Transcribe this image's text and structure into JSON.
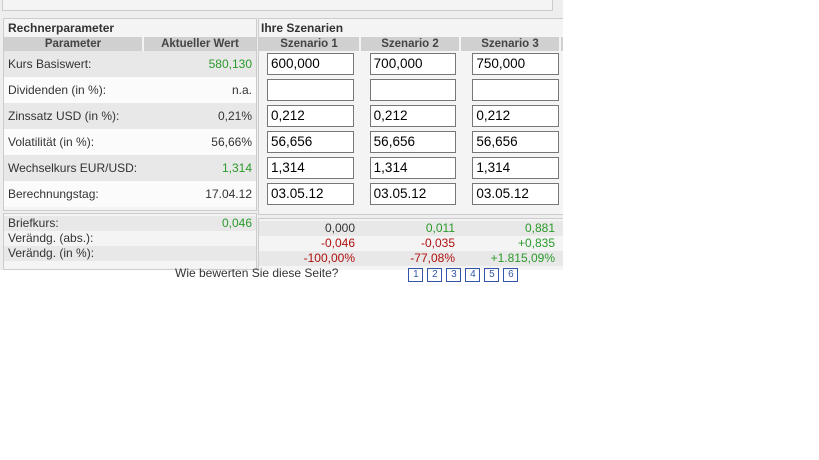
{
  "left": {
    "title": "Rechnerparameter",
    "headers": [
      "Parameter",
      "Aktueller Wert"
    ],
    "rows": [
      {
        "label": "Kurs Basiswert:",
        "value": "580,130"
      },
      {
        "label": "Dividenden (in %):",
        "value": "n.a."
      },
      {
        "label": "Zinssatz USD (in %):",
        "value": "0,21%"
      },
      {
        "label": "Volatilität (in %):",
        "value": "56,66%"
      },
      {
        "label": "Wechselkurs EUR/USD:",
        "value": "1,314"
      },
      {
        "label": "Berechnungstag:",
        "value": "17.04.12"
      }
    ]
  },
  "right": {
    "title": "Ihre Szenarien",
    "headers": [
      "Szenario 1",
      "Szenario 2",
      "Szenario 3"
    ],
    "inputs": [
      [
        "600,000",
        "700,000",
        "750,000"
      ],
      [
        "",
        "",
        ""
      ],
      [
        "0,212",
        "0,212",
        "0,212"
      ],
      [
        "56,656",
        "56,656",
        "56,656"
      ],
      [
        "1,314",
        "1,314",
        "1,314"
      ],
      [
        "03.05.12",
        "03.05.12",
        "03.05.12"
      ]
    ]
  },
  "results": {
    "labels": [
      "Briefkurs:",
      "Verändg. (abs.):",
      "Verändg. (in %):"
    ],
    "current_briefkurs": "0,046",
    "values": [
      [
        "0,000",
        "0,011",
        "0,881"
      ],
      [
        "-0,046",
        "-0,035",
        "+0,835"
      ],
      [
        "-100,00%",
        "-77,08%",
        "+1.815,09%"
      ]
    ]
  },
  "rating": {
    "label": "Wie bewerten Sie diese Seite?",
    "options": [
      "1",
      "2",
      "3",
      "4",
      "5",
      "6"
    ]
  },
  "colors": {
    "positive": "#2a9a2a",
    "negative": "#b01010"
  }
}
